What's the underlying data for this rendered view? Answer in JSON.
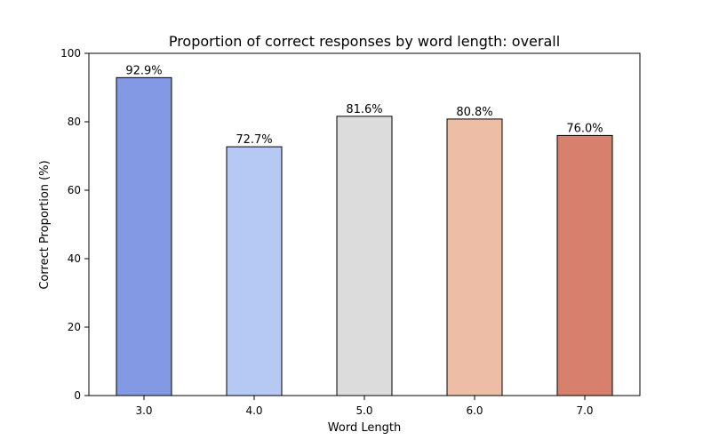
{
  "chart_data": {
    "type": "bar",
    "title": "Proportion of correct responses by word length: overall",
    "xlabel": "Word Length",
    "ylabel": "Correct Proportion (%)",
    "categories": [
      "3.0",
      "4.0",
      "5.0",
      "6.0",
      "7.0"
    ],
    "values": [
      92.9,
      72.7,
      81.6,
      80.8,
      76.0
    ],
    "value_labels": [
      "92.9%",
      "72.7%",
      "81.6%",
      "80.8%",
      "76.0%"
    ],
    "colors": [
      "#8399e4",
      "#b6c9f4",
      "#dcdcdc",
      "#edbda6",
      "#d6806d"
    ],
    "ylim": [
      0,
      100
    ],
    "yticks": [
      0,
      20,
      40,
      60,
      80,
      100
    ],
    "grid": false,
    "legend": "none"
  }
}
